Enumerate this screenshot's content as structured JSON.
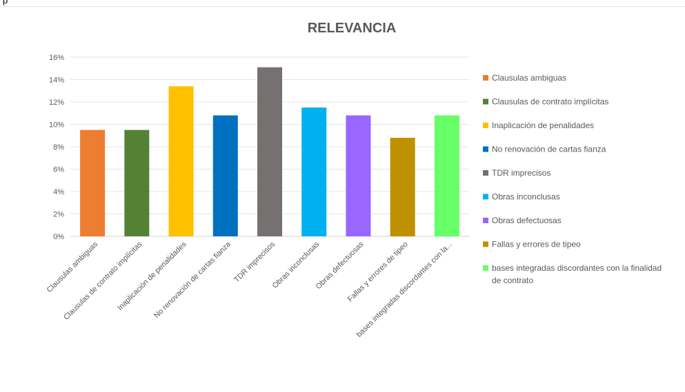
{
  "page": {
    "top_text": "p"
  },
  "chart_data": {
    "type": "bar",
    "title": "RELEVANCIA",
    "xlabel": "",
    "ylabel": "",
    "ylim": [
      0,
      16
    ],
    "y_ticks": [
      "0%",
      "2%",
      "4%",
      "6%",
      "8%",
      "10%",
      "12%",
      "14%",
      "16%"
    ],
    "grid": true,
    "legend_position": "right",
    "categories": [
      "Clausulas ambiguas",
      "Clausulas de contrato implícitas",
      "Inaplicación de penalidades",
      "No renovación de cartas fianza",
      "TDR imprecisos",
      "Obras inconclusas",
      "Obras defectuosas",
      "Fallas y errores de tipeo",
      "bases integradas discordantes con la..."
    ],
    "values": [
      9.5,
      9.5,
      13.4,
      10.8,
      15.1,
      11.5,
      10.8,
      8.8,
      10.8
    ],
    "colors": [
      "#ED7D31",
      "#548235",
      "#FFC000",
      "#0070C0",
      "#767171",
      "#00B0F0",
      "#9966FF",
      "#BF9000",
      "#66FF66"
    ],
    "legend": [
      [
        "Clausulas ambiguas"
      ],
      [
        "Clausulas de contrato implícitas"
      ],
      [
        "Inaplicación de penalidades"
      ],
      [
        "No renovación de cartas fianza"
      ],
      [
        "TDR imprecisos"
      ],
      [
        "Obras inconclusas"
      ],
      [
        "Obras defectuosas"
      ],
      [
        "Fallas y errores de tipeo"
      ],
      [
        "bases integradas discordantes con la finalidad",
        "de contrato"
      ]
    ]
  }
}
